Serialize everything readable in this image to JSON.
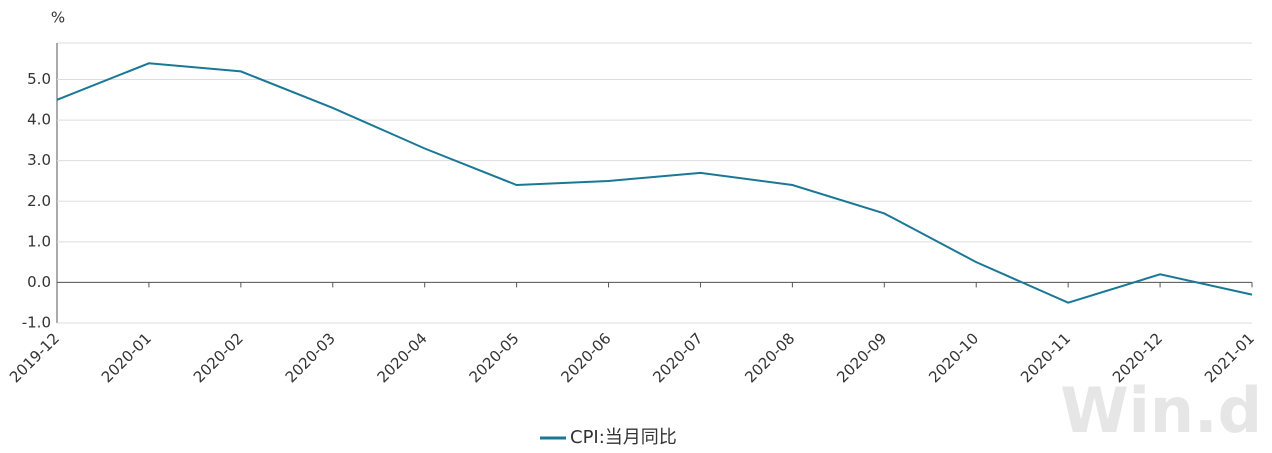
{
  "chart_data": {
    "type": "line",
    "y_unit": "%",
    "categories": [
      "2019-12",
      "2020-01",
      "2020-02",
      "2020-03",
      "2020-04",
      "2020-05",
      "2020-06",
      "2020-07",
      "2020-08",
      "2020-09",
      "2020-10",
      "2020-11",
      "2020-12",
      "2021-01"
    ],
    "series": [
      {
        "name": "CPI:当月同比",
        "color": "#1a7896",
        "values": [
          4.5,
          5.4,
          5.2,
          4.3,
          3.3,
          2.4,
          2.5,
          2.7,
          2.4,
          1.7,
          0.5,
          -0.5,
          0.2,
          -0.3
        ]
      }
    ],
    "ylim": [
      -1,
      5.9
    ],
    "yticks": [
      {
        "value": -1,
        "label": "-1.0"
      },
      {
        "value": 0,
        "label": "0.0"
      },
      {
        "value": 1,
        "label": "1.0"
      },
      {
        "value": 2,
        "label": "2.0"
      },
      {
        "value": 3,
        "label": "3.0"
      },
      {
        "value": 4,
        "label": "4.0"
      },
      {
        "value": 5,
        "label": "5.0"
      }
    ],
    "grid": true,
    "legend": "bottom",
    "watermark": "Win.d"
  }
}
